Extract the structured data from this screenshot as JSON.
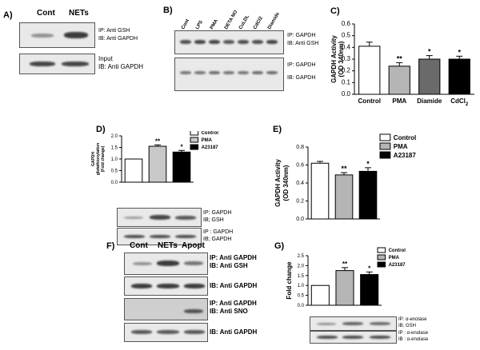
{
  "panels": {
    "A": {
      "label": "A)",
      "lanes": [
        "Cont",
        "NETs"
      ],
      "blot1": [
        "IP:  Anti GSH",
        "IB: Anti GAPDH"
      ],
      "blot2": [
        "Input",
        "IB: Anti GAPDH"
      ]
    },
    "B": {
      "label": "B)",
      "lanes": [
        "Cont",
        "LPS",
        "PMA",
        "DETA NO",
        "CuLDL",
        "CdCl2",
        "Diamide"
      ],
      "blot1": [
        "IP: GAPDH",
        "IB: Anti GSH"
      ],
      "blot2": [
        "IP: GAPDH",
        "IB: GAPDH"
      ]
    },
    "D": {
      "label": "D)",
      "legend": [
        "Control",
        "PMA",
        "A23187"
      ],
      "blot1": [
        "IP:  GAPDH",
        "IB; GSH"
      ],
      "blot2": [
        "IP : GAPDH",
        "IB; GAPDH"
      ]
    },
    "F": {
      "label": "F)",
      "lanes": [
        "Cont",
        "NETs",
        "Apopt"
      ],
      "blots": [
        [
          "IP: Anti GAPDH",
          "IB: Anti GSH"
        ],
        [
          "IB: Anti GAPDH"
        ],
        [
          "IP: Anti GAPDH",
          "IB: Anti SNO"
        ],
        [
          "IB: Anti GAPDH"
        ]
      ]
    },
    "G": {
      "label": "G)",
      "legend": [
        "Control",
        "PMA",
        "A23187"
      ],
      "blot1": [
        "IP:  α-enolase",
        "IB; GSH"
      ],
      "blot2": [
        "IP : α-enolase",
        "IB : α-enolase"
      ]
    }
  },
  "chart_data": [
    {
      "id": "C",
      "label": "C)",
      "type": "bar",
      "categories": [
        "Control",
        "PMA",
        "Diamide",
        "CdCl2"
      ],
      "values": [
        0.41,
        0.24,
        0.3,
        0.3
      ],
      "errors": [
        0.035,
        0.03,
        0.03,
        0.025
      ],
      "sig": [
        "",
        "**",
        "*",
        "*"
      ],
      "colors": [
        "#ffffff",
        "#b5b5b5",
        "#6a6a6a",
        "#000000"
      ],
      "ylabel": "GAPDH Activity\n(OD 340nm)",
      "ylim": [
        0,
        0.6
      ],
      "yticks": [
        "0.0",
        "0.1",
        "0.2",
        "0.3",
        "0.4",
        "0.5",
        "0.6"
      ]
    },
    {
      "id": "D",
      "type": "bar",
      "categories": [
        "Control",
        "PMA",
        "A23187"
      ],
      "values": [
        1.0,
        1.55,
        1.3
      ],
      "errors": [
        0,
        0.06,
        0.07
      ],
      "sig": [
        "",
        "**",
        "*"
      ],
      "colors": [
        "#ffffff",
        "#c8c8c8",
        "#000000"
      ],
      "ylabel": "GAPDH\nglutathionylation\n(Fold change)",
      "ylim": [
        0,
        2.0
      ],
      "yticks": [
        "0.0",
        "0.5",
        "1.0",
        "1.5",
        "2.0"
      ]
    },
    {
      "id": "E",
      "label": "E)",
      "type": "bar",
      "categories": [
        "Control",
        "PMA",
        "A23187"
      ],
      "values": [
        0.62,
        0.49,
        0.53
      ],
      "errors": [
        0.02,
        0.025,
        0.04
      ],
      "sig": [
        "",
        "**",
        "*"
      ],
      "colors": [
        "#ffffff",
        "#b5b5b5",
        "#000000"
      ],
      "ylabel": "GAPDH Activity\n(OD 340nm)",
      "ylim": [
        0,
        0.8
      ],
      "yticks": [
        "0.0",
        "0.2",
        "0.4",
        "0.6",
        "0.8"
      ]
    },
    {
      "id": "G",
      "type": "bar",
      "categories": [
        "Control",
        "PMA",
        "A23187"
      ],
      "values": [
        1.0,
        1.75,
        1.55
      ],
      "errors": [
        0,
        0.15,
        0.13
      ],
      "sig": [
        "",
        "**",
        "*"
      ],
      "colors": [
        "#ffffff",
        "#b5b5b5",
        "#000000"
      ],
      "ylabel": "Fold change",
      "ylim": [
        0,
        2.5
      ],
      "yticks": [
        "0.0",
        "0.5",
        "1.0",
        "1.5",
        "2.0",
        "2.5"
      ]
    }
  ]
}
